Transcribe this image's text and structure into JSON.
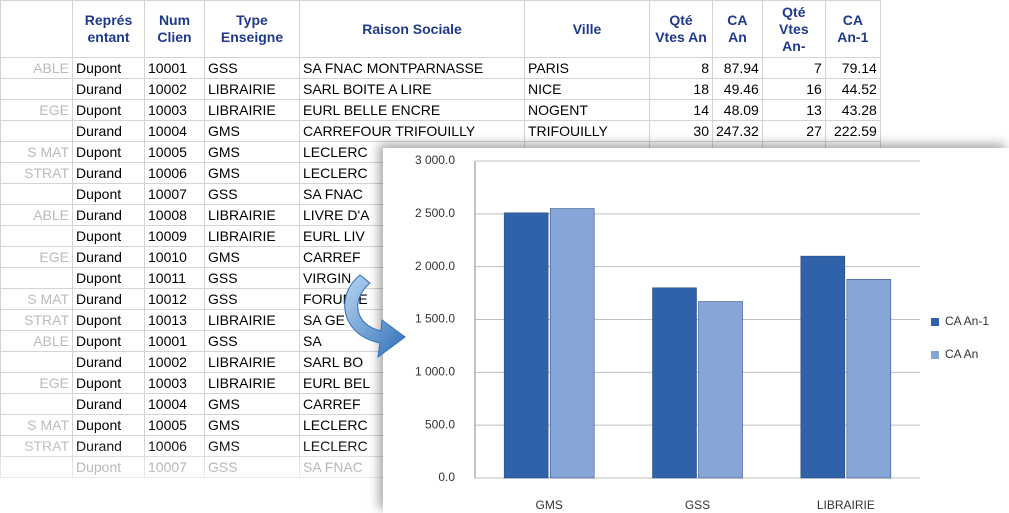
{
  "table": {
    "headers": [
      null,
      "Représ\nentant",
      "Num\nClien",
      "Type\nEnseigne",
      "Raison Sociale",
      "Ville",
      "Qté\nVtes An",
      "CA\nAn",
      "Qté\nVtes An-",
      "CA\nAn-1"
    ],
    "rows": [
      [
        "ABLE",
        "Dupont",
        10001,
        "GSS",
        "SA FNAC MONTPARNASSE",
        "PARIS",
        8,
        87.94,
        7,
        79.14
      ],
      [
        null,
        "Durand",
        10002,
        "LIBRAIRIE",
        "SARL BOITE A LIRE",
        "NICE",
        18,
        49.46,
        16,
        44.52
      ],
      [
        "EGE",
        "Dupont",
        10003,
        "LIBRAIRIE",
        "EURL BELLE ENCRE",
        "NOGENT",
        14,
        48.09,
        13,
        43.28
      ],
      [
        null,
        "Durand",
        10004,
        "GMS",
        "CARREFOUR TRIFOUILLY",
        "TRIFOUILLY",
        30,
        247.32,
        27,
        222.59
      ],
      [
        "S MAT",
        "Dupont",
        10005,
        "GMS",
        "LECLERC"
      ],
      [
        "STRAT",
        "Durand",
        10006,
        "GMS",
        "LECLERC"
      ],
      [
        null,
        "Dupont",
        10007,
        "GSS",
        "SA FNAC"
      ],
      [
        "ABLE",
        "Durand",
        10008,
        "LIBRAIRIE",
        "LIVRE D'A"
      ],
      [
        null,
        "Dupont",
        10009,
        "LIBRAIRIE",
        "EURL LIV"
      ],
      [
        "EGE",
        "Durand",
        10010,
        "GMS",
        "CARREF"
      ],
      [
        null,
        "Dupont",
        10011,
        "GSS",
        "VIRGIN"
      ],
      [
        "S MAT",
        "Durand",
        10012,
        "GSS",
        "FORUM E"
      ],
      [
        "STRAT",
        "Dupont",
        10013,
        "LIBRAIRIE",
        "SA GE"
      ],
      [
        "ABLE",
        "Dupont",
        10001,
        "GSS",
        "SA"
      ],
      [
        null,
        "Durand",
        10002,
        "LIBRAIRIE",
        "SARL BO"
      ],
      [
        "EGE",
        "Dupont",
        10003,
        "LIBRAIRIE",
        "EURL BEL"
      ],
      [
        null,
        "Durand",
        10004,
        "GMS",
        "CARREF"
      ],
      [
        "S MAT",
        "Dupont",
        10005,
        "GMS",
        "LECLERC"
      ],
      [
        "STRAT",
        "Durand",
        10006,
        "GMS",
        "LECLERC"
      ],
      [
        null,
        "Dupont",
        10007,
        "GSS",
        "SA FNAC"
      ]
    ]
  },
  "chart_data": {
    "type": "bar",
    "categories": [
      "GMS",
      "GSS",
      "LIBRAIRIE"
    ],
    "series": [
      {
        "name": "CA An-1",
        "color": "#2f62a8",
        "values": [
          2510,
          1800,
          2100
        ]
      },
      {
        "name": "CA An",
        "color": "#86a6d8",
        "values": [
          2550,
          1670,
          1880
        ]
      }
    ],
    "ylim": [
      0,
      3000
    ],
    "yticks": [
      {
        "value": 0,
        "label": "0.0"
      },
      {
        "value": 500,
        "label": "500.0"
      },
      {
        "value": 1000,
        "label": "1 000.0"
      },
      {
        "value": 1500,
        "label": "1 500.0"
      },
      {
        "value": 2000,
        "label": "2 000.0"
      },
      {
        "value": 2500,
        "label": "2 500.0"
      },
      {
        "value": 3000,
        "label": "3 000.0"
      }
    ],
    "grid": true,
    "legend": "right"
  }
}
